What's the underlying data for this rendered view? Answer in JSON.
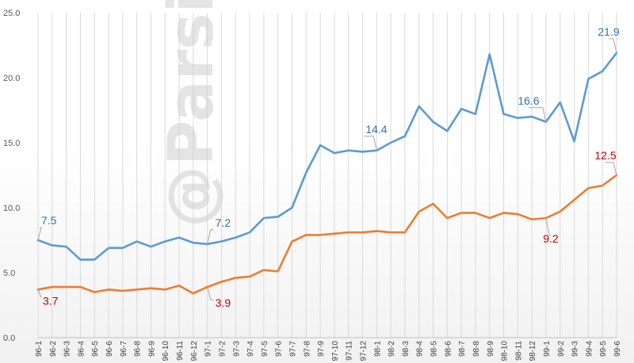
{
  "watermark": "@Parsistahlil",
  "chart_data": {
    "type": "line",
    "title": "",
    "xlabel": "",
    "ylabel": "",
    "ylim": [
      0,
      25
    ],
    "yticks": [
      "0.0",
      "5.0",
      "10.0",
      "15.0",
      "20.0",
      "25.0"
    ],
    "grid": "vertical",
    "x": [
      "96-1",
      "96-2",
      "96-3",
      "96-4",
      "96-5",
      "96-6",
      "96-7",
      "96-8",
      "96-9",
      "96-10",
      "96-11",
      "96-12",
      "97-1",
      "97-2",
      "97-3",
      "97-4",
      "97-5",
      "97-6",
      "97-7",
      "97-8",
      "97-9",
      "97-10",
      "97-11",
      "97-12",
      "98-1",
      "98-2",
      "98-3",
      "98-4",
      "98-5",
      "98-6",
      "98-7",
      "98-8",
      "98-9",
      "98-10",
      "98-11",
      "98-12",
      "99-1",
      "99-2",
      "99-3",
      "99-4",
      "99-5",
      "99-6"
    ],
    "series": [
      {
        "color": "#5b9bd5",
        "label_color": "#2e75b6",
        "values": [
          7.5,
          7.1,
          7.0,
          6.0,
          6.0,
          6.9,
          6.9,
          7.4,
          7.0,
          7.4,
          7.7,
          7.3,
          7.2,
          7.4,
          7.7,
          8.1,
          9.2,
          9.3,
          10.0,
          12.7,
          14.8,
          14.2,
          14.4,
          14.3,
          14.4,
          15.0,
          15.5,
          17.8,
          16.6,
          15.9,
          17.6,
          17.2,
          21.8,
          17.2,
          16.9,
          17.0,
          16.6,
          18.1,
          15.1,
          19.9,
          20.5,
          21.9
        ],
        "annotations": [
          {
            "index": 0,
            "text": "7.5"
          },
          {
            "index": 12,
            "text": "7.2"
          },
          {
            "index": 24,
            "text": "14.4"
          },
          {
            "index": 36,
            "text": "16.6"
          },
          {
            "index": 41,
            "text": "21.9"
          }
        ]
      },
      {
        "color": "#ed7d31",
        "label_color": "#c00000",
        "values": [
          3.7,
          3.9,
          3.9,
          3.9,
          3.5,
          3.7,
          3.6,
          3.7,
          3.8,
          3.7,
          4.0,
          3.4,
          3.9,
          4.3,
          4.6,
          4.7,
          5.2,
          5.1,
          7.4,
          7.9,
          7.9,
          8.0,
          8.1,
          8.1,
          8.2,
          8.1,
          8.1,
          9.7,
          10.3,
          9.2,
          9.6,
          9.6,
          9.2,
          9.6,
          9.5,
          9.1,
          9.2,
          9.7,
          10.6,
          11.5,
          11.7,
          12.5
        ],
        "annotations": [
          {
            "index": 0,
            "text": "3.7"
          },
          {
            "index": 12,
            "text": "3.9"
          },
          {
            "index": 36,
            "text": "9.2"
          },
          {
            "index": 41,
            "text": "12.5"
          }
        ]
      }
    ]
  }
}
